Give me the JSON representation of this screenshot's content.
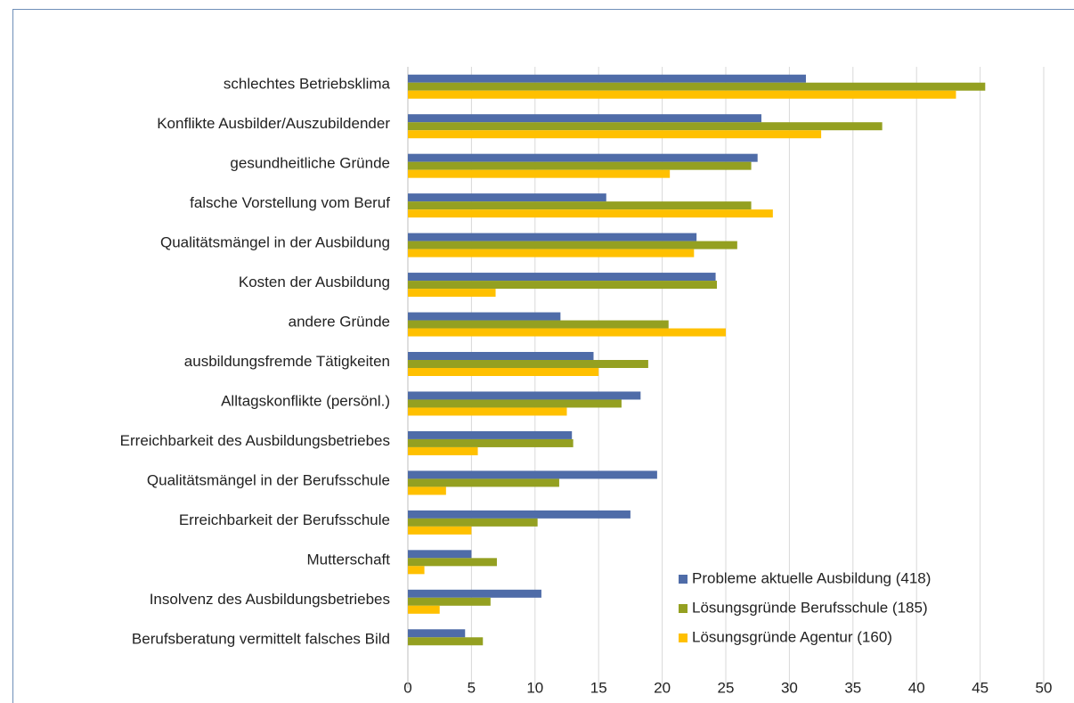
{
  "chart_data": {
    "type": "bar",
    "orientation": "horizontal",
    "categories": [
      "schlechtes Betriebsklima",
      "Konflikte Ausbilder/Auszubildender",
      "gesundheitliche Gründe",
      "falsche Vorstellung vom Beruf",
      "Qualitätsmängel in der Ausbildung",
      "Kosten der Ausbildung",
      "andere Gründe",
      "ausbildungsfremde Tätigkeiten",
      "Alltagskonflikte (persönl.)",
      "Erreichbarkeit des Ausbildungsbetriebes",
      "Qualitätsmängel in der Berufsschule",
      "Erreichbarkeit der Berufsschule",
      "Mutterschaft",
      "Insolvenz des Ausbildungsbetriebes",
      "Berufsberatung vermittelt falsches Bild"
    ],
    "series": [
      {
        "name": "Probleme aktuelle Ausbildung (418)",
        "color": "#4f6ca8",
        "values": [
          31.3,
          27.8,
          27.5,
          15.6,
          22.7,
          24.2,
          12.0,
          14.6,
          18.3,
          12.9,
          19.6,
          17.5,
          5.0,
          10.5,
          4.5
        ]
      },
      {
        "name": "Lösungsgründe Berufsschule (185)",
        "color": "#94a021",
        "values": [
          45.4,
          37.3,
          27.0,
          27.0,
          25.9,
          24.3,
          20.5,
          18.9,
          16.8,
          13.0,
          11.9,
          10.2,
          7.0,
          6.5,
          5.9
        ]
      },
      {
        "name": "Lösungsgründe Agentur (160)",
        "color": "#ffc000",
        "values": [
          43.1,
          32.5,
          20.6,
          28.7,
          22.5,
          6.9,
          25.0,
          15.0,
          12.5,
          5.5,
          3.0,
          5.0,
          1.3,
          2.5,
          null
        ]
      }
    ],
    "xlim": [
      0,
      50
    ],
    "xticks": [
      0,
      5,
      10,
      15,
      20,
      25,
      30,
      35,
      40,
      45,
      50
    ],
    "grid": true,
    "legend": "lower right"
  }
}
